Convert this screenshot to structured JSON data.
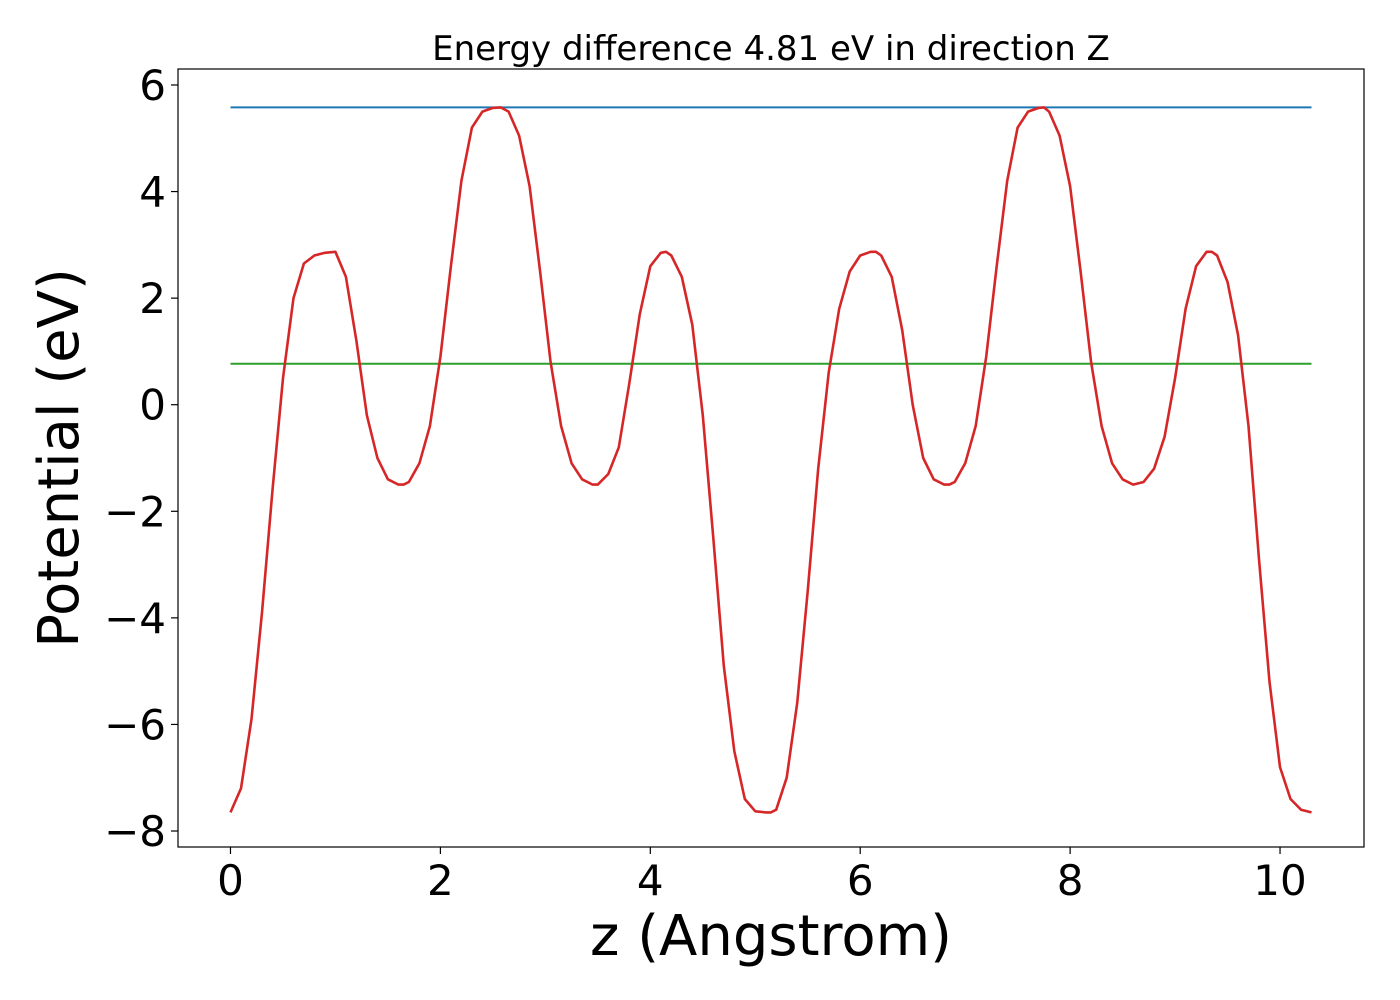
{
  "chart_data": {
    "type": "line",
    "title": "Energy difference 4.81 eV in direction Z",
    "xlabel": "z (Angstrom)",
    "ylabel": "Potential (eV)",
    "xlim": [
      -0.5,
      10.8
    ],
    "ylim": [
      -8.3,
      6.3
    ],
    "xticks": [
      0,
      2,
      4,
      6,
      8,
      10
    ],
    "yticks": [
      -8,
      -6,
      -4,
      -2,
      0,
      2,
      4,
      6
    ],
    "grid": false,
    "series": [
      {
        "color": "#1f77b4",
        "kind": "hline",
        "x": [
          0,
          10.3
        ],
        "y": [
          5.58,
          5.58
        ]
      },
      {
        "color": "#2ca02c",
        "kind": "hline",
        "x": [
          0,
          10.3
        ],
        "y": [
          0.77,
          0.77
        ]
      },
      {
        "color": "#d62728",
        "kind": "curve",
        "x": [
          0,
          0.1,
          0.2,
          0.3,
          0.4,
          0.5,
          0.6,
          0.7,
          0.8,
          0.9,
          1.0,
          1.1,
          1.2,
          1.3,
          1.4,
          1.5,
          1.6,
          1.65,
          1.7,
          1.8,
          1.9,
          2.0,
          2.1,
          2.2,
          2.3,
          2.4,
          2.5,
          2.575,
          2.65,
          2.75,
          2.85,
          2.95,
          3.05,
          3.15,
          3.25,
          3.35,
          3.45,
          3.5,
          3.6,
          3.7,
          3.8,
          3.9,
          4.0,
          4.1,
          4.15,
          4.2,
          4.3,
          4.4,
          4.5,
          4.6,
          4.7,
          4.8,
          4.9,
          5.0,
          5.1,
          5.15,
          5.2,
          5.3,
          5.4,
          5.5,
          5.6,
          5.7,
          5.8,
          5.9,
          6.0,
          6.1,
          6.15,
          6.2,
          6.3,
          6.4,
          6.5,
          6.6,
          6.7,
          6.8,
          6.85,
          6.9,
          7.0,
          7.1,
          7.2,
          7.3,
          7.4,
          7.5,
          7.6,
          7.7,
          7.75,
          7.8,
          7.9,
          8.0,
          8.1,
          8.2,
          8.3,
          8.4,
          8.5,
          8.6,
          8.7,
          8.8,
          8.9,
          9.0,
          9.1,
          9.2,
          9.3,
          9.35,
          9.4,
          9.5,
          9.6,
          9.7,
          9.8,
          9.9,
          10.0,
          10.1,
          10.2,
          10.3
        ],
        "y": [
          -7.65,
          -7.2,
          -5.9,
          -3.9,
          -1.6,
          0.5,
          2.0,
          2.65,
          2.8,
          2.85,
          2.87,
          2.4,
          1.2,
          -0.2,
          -1.0,
          -1.4,
          -1.5,
          -1.5,
          -1.45,
          -1.1,
          -0.4,
          0.9,
          2.6,
          4.2,
          5.2,
          5.5,
          5.57,
          5.58,
          5.5,
          5.05,
          4.1,
          2.5,
          0.8,
          -0.4,
          -1.1,
          -1.4,
          -1.5,
          -1.5,
          -1.3,
          -0.8,
          0.4,
          1.7,
          2.6,
          2.85,
          2.87,
          2.8,
          2.4,
          1.5,
          -0.2,
          -2.5,
          -4.9,
          -6.5,
          -7.4,
          -7.63,
          -7.65,
          -7.65,
          -7.6,
          -7.0,
          -5.6,
          -3.5,
          -1.2,
          0.6,
          1.8,
          2.5,
          2.8,
          2.87,
          2.87,
          2.8,
          2.4,
          1.4,
          0.0,
          -1.0,
          -1.4,
          -1.5,
          -1.5,
          -1.45,
          -1.1,
          -0.4,
          0.9,
          2.6,
          4.2,
          5.2,
          5.5,
          5.57,
          5.58,
          5.5,
          5.05,
          4.1,
          2.5,
          0.8,
          -0.4,
          -1.1,
          -1.4,
          -1.5,
          -1.45,
          -1.2,
          -0.6,
          0.5,
          1.8,
          2.6,
          2.87,
          2.87,
          2.8,
          2.3,
          1.3,
          -0.4,
          -2.9,
          -5.2,
          -6.8,
          -7.4,
          -7.6,
          -7.65
        ]
      }
    ]
  }
}
